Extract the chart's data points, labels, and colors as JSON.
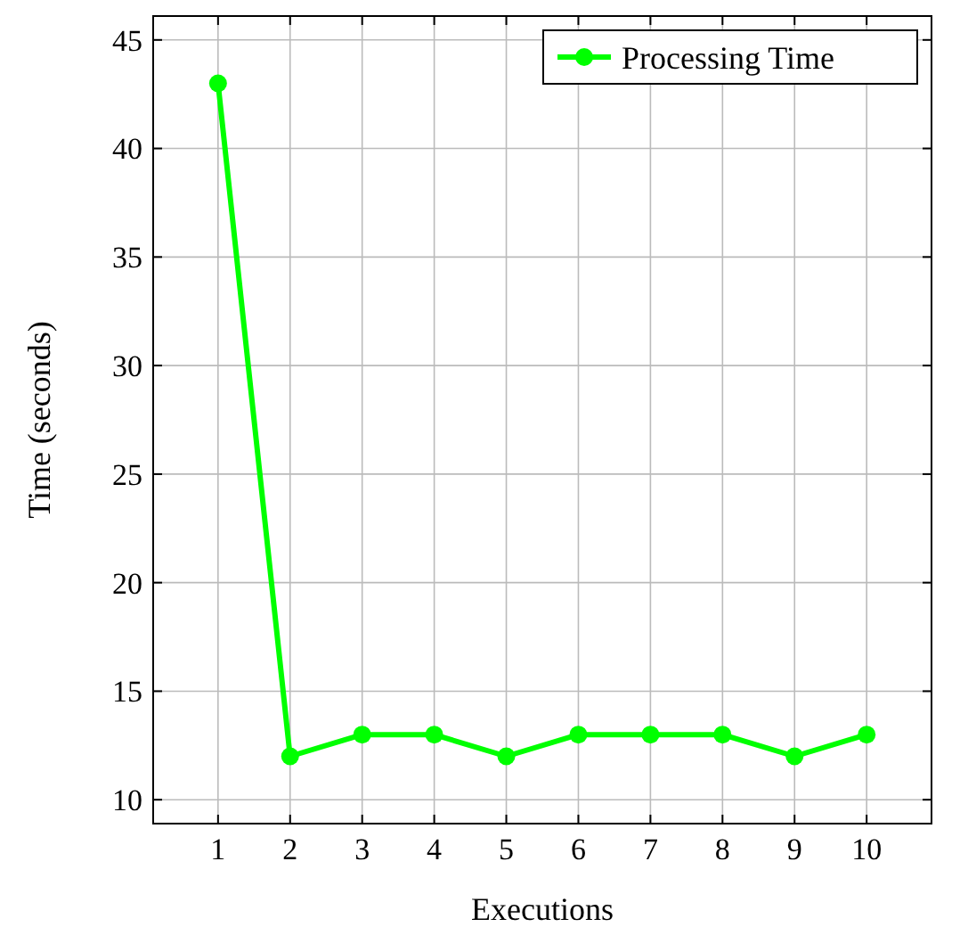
{
  "chart_data": {
    "type": "line",
    "xlabel": "Executions",
    "ylabel": "Time (seconds)",
    "x": [
      1,
      2,
      3,
      4,
      5,
      6,
      7,
      8,
      9,
      10
    ],
    "series": [
      {
        "name": "Processing Time",
        "color": "#00ff00",
        "values": [
          43,
          12,
          13,
          13,
          12,
          13,
          13,
          13,
          12,
          13
        ]
      }
    ],
    "xlim": [
      0.1,
      10.9
    ],
    "xticks": [
      1,
      2,
      3,
      4,
      5,
      6,
      7,
      8,
      9,
      10
    ],
    "ylim": [
      8.9,
      46.1
    ],
    "yticks": [
      10,
      15,
      20,
      25,
      30,
      35,
      40,
      45
    ],
    "grid": true,
    "legend": "top right",
    "marker": "circle",
    "line_style": "solid"
  }
}
